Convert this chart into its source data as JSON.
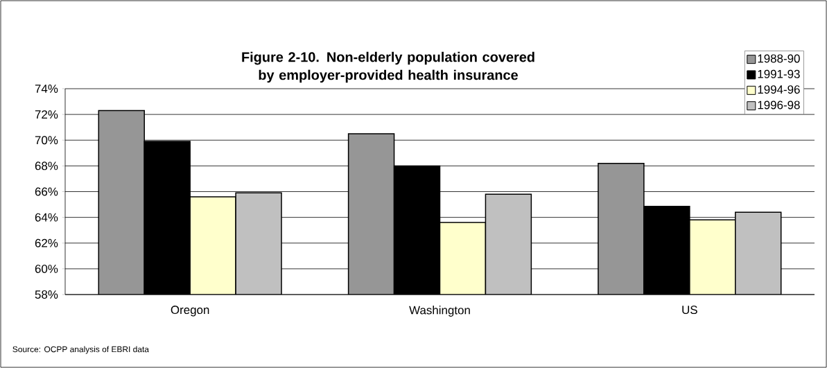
{
  "chart_data": {
    "type": "bar",
    "title": "Figure 2-10. Non-elderly population covered by employer-provided health insurance",
    "categories": [
      "Oregon",
      "Washington",
      "US"
    ],
    "series": [
      {
        "name": "1988-90",
        "color": "#969696",
        "values": [
          72.3,
          70.5,
          68.2
        ]
      },
      {
        "name": "1991-93",
        "color": "#000000",
        "values": [
          69.9,
          68.0,
          64.85
        ]
      },
      {
        "name": "1994-96",
        "color": "#ffffcc",
        "values": [
          65.6,
          63.6,
          63.8
        ]
      },
      {
        "name": "1996-98",
        "color": "#c0c0c0",
        "values": [
          65.9,
          65.8,
          64.4
        ]
      }
    ],
    "ylim": [
      58,
      74
    ],
    "yticks": [
      {
        "value": 58,
        "label": "58%"
      },
      {
        "value": 60,
        "label": "60%"
      },
      {
        "value": 62,
        "label": "62%"
      },
      {
        "value": 64,
        "label": "64%"
      },
      {
        "value": 66,
        "label": "66%"
      },
      {
        "value": 68,
        "label": "68%"
      },
      {
        "value": 70,
        "label": "70%"
      },
      {
        "value": 72,
        "label": "72%"
      },
      {
        "value": 74,
        "label": "74%"
      }
    ],
    "grid": "y",
    "legend": "top right",
    "annotations": [
      "Source: OCPP analysis of EBRI data"
    ]
  }
}
